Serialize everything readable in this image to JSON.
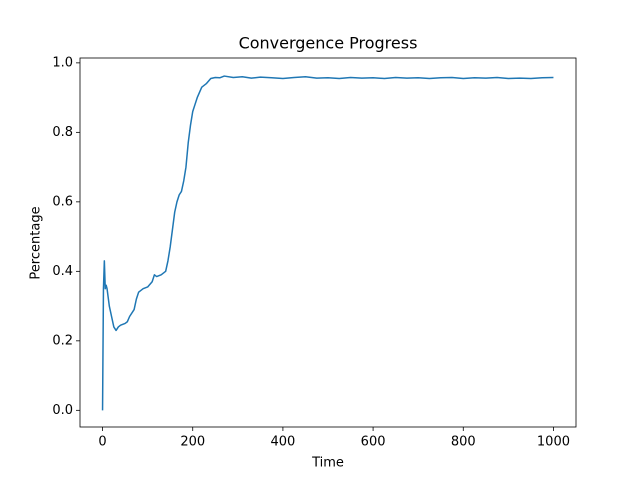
{
  "chart_data": {
    "type": "line",
    "title": "Convergence Progress",
    "x_label": "Time",
    "y_label": "Percentage",
    "x": [
      0,
      2,
      4,
      6,
      8,
      10,
      15,
      20,
      25,
      30,
      35,
      40,
      50,
      55,
      60,
      70,
      75,
      80,
      90,
      100,
      110,
      115,
      120,
      130,
      140,
      145,
      150,
      155,
      160,
      165,
      170,
      175,
      180,
      185,
      190,
      195,
      200,
      205,
      210,
      220,
      230,
      240,
      250,
      260,
      270,
      290,
      310,
      330,
      350,
      375,
      400,
      425,
      450,
      475,
      500,
      525,
      550,
      575,
      600,
      625,
      650,
      675,
      700,
      725,
      750,
      775,
      800,
      825,
      850,
      875,
      900,
      925,
      950,
      975,
      1000
    ],
    "series": [
      {
        "name": "Percentage",
        "color": "#1f77b4",
        "values": [
          0.0,
          0.35,
          0.43,
          0.35,
          0.36,
          0.35,
          0.3,
          0.27,
          0.24,
          0.23,
          0.24,
          0.245,
          0.25,
          0.255,
          0.27,
          0.29,
          0.32,
          0.34,
          0.35,
          0.355,
          0.37,
          0.39,
          0.385,
          0.39,
          0.4,
          0.43,
          0.47,
          0.52,
          0.57,
          0.6,
          0.62,
          0.63,
          0.66,
          0.7,
          0.77,
          0.82,
          0.86,
          0.88,
          0.9,
          0.93,
          0.94,
          0.955,
          0.958,
          0.957,
          0.962,
          0.958,
          0.96,
          0.956,
          0.959,
          0.957,
          0.955,
          0.958,
          0.96,
          0.956,
          0.957,
          0.955,
          0.958,
          0.956,
          0.957,
          0.955,
          0.958,
          0.956,
          0.957,
          0.955,
          0.957,
          0.958,
          0.955,
          0.957,
          0.956,
          0.958,
          0.955,
          0.956,
          0.955,
          0.957,
          0.958
        ]
      }
    ],
    "xlim": [
      -50,
      1050
    ],
    "ylim": [
      -0.048,
      1.014
    ],
    "xticks": [
      0,
      200,
      400,
      600,
      800,
      1000
    ],
    "yticks": [
      {
        "value": 0,
        "label": "0.0"
      },
      0.2,
      0.4,
      0.6,
      0.8,
      {
        "value": 1,
        "label": "1.0"
      }
    ]
  }
}
